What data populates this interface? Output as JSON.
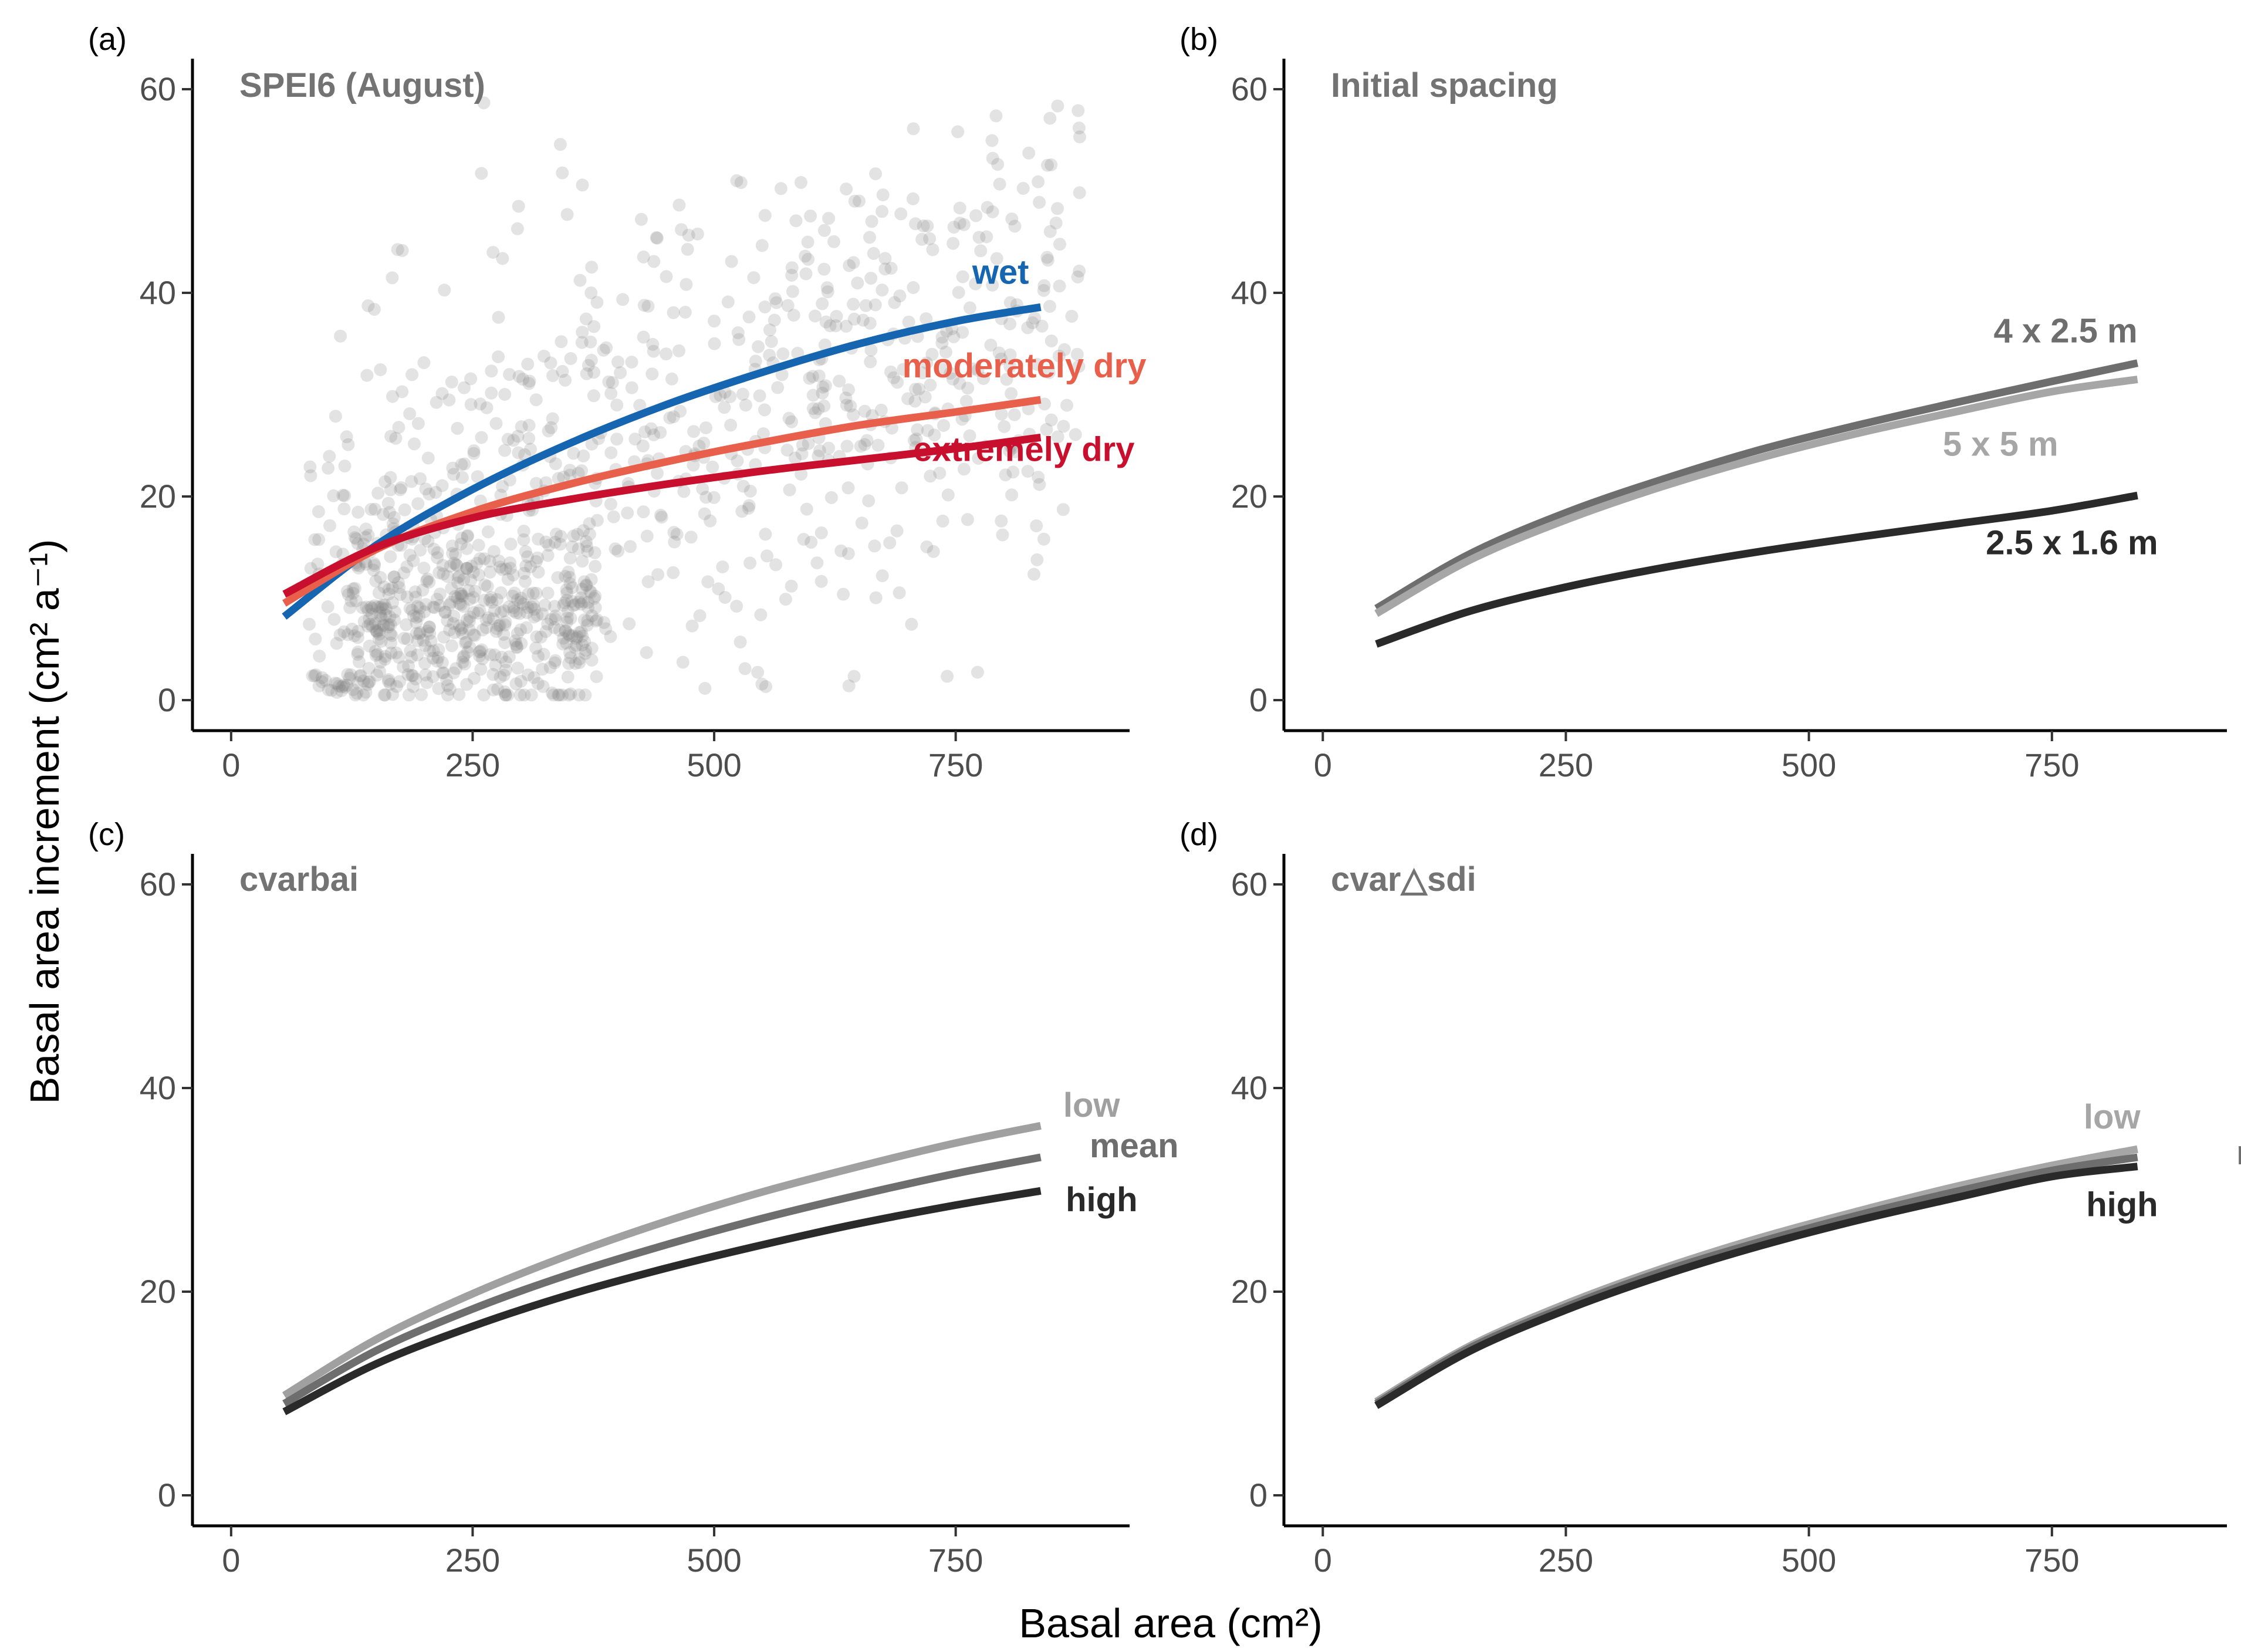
{
  "chart_data": {
    "type": "line",
    "xlabel": "Basal area (cm²)",
    "ylabel": "Basal area increment (cm² a⁻¹)",
    "xlim": [
      -40,
      930
    ],
    "ylim": [
      -3,
      63
    ],
    "xticks": [
      0,
      250,
      500,
      750
    ],
    "yticks": [
      0,
      20,
      40,
      60
    ],
    "panels": [
      {
        "tag": "(a)",
        "title": "SPEI6 (August)",
        "scatter": true,
        "series": [
          {
            "name": "wet",
            "color": "#1565b0",
            "x": [
              55,
              150,
              250,
              350,
              450,
              550,
              650,
              750,
              838
            ],
            "y": [
              8.2,
              15.2,
              20.7,
              25.2,
              29.0,
              32.2,
              35.0,
              37.2,
              38.6
            ]
          },
          {
            "name": "moderately dry",
            "color": "#e8604c",
            "x": [
              55,
              150,
              250,
              350,
              450,
              550,
              650,
              750,
              838
            ],
            "y": [
              9.5,
              14.8,
              18.5,
              21.2,
              23.4,
              25.3,
              27.0,
              28.3,
              29.5
            ]
          },
          {
            "name": "extremely dry",
            "color": "#c8102e",
            "x": [
              55,
              150,
              250,
              350,
              450,
              550,
              650,
              750,
              838
            ],
            "y": [
              10.4,
              15.0,
              17.9,
              19.7,
              21.2,
              22.5,
              23.6,
              24.7,
              25.8
            ]
          }
        ]
      },
      {
        "tag": "(b)",
        "title": "Initial spacing",
        "scatter": false,
        "series": [
          {
            "name": "4 x 2.5 m",
            "color": "#6e6e6e",
            "x": [
              55,
              150,
              250,
              350,
              450,
              550,
              650,
              750,
              838
            ],
            "y": [
              9.0,
              14.3,
              18.4,
              21.7,
              24.6,
              27.0,
              29.2,
              31.3,
              33.1
            ]
          },
          {
            "name": "5 x 5 m",
            "color": "#a6a6a6",
            "x": [
              55,
              150,
              250,
              350,
              450,
              550,
              650,
              750,
              838
            ],
            "y": [
              8.5,
              13.7,
              17.7,
              21.0,
              23.8,
              26.2,
              28.3,
              30.3,
              31.5
            ]
          },
          {
            "name": "2.5 x 1.6 m",
            "color": "#2a2a2a",
            "x": [
              55,
              150,
              250,
              350,
              450,
              550,
              650,
              750,
              838
            ],
            "y": [
              5.5,
              8.7,
              11.1,
              13.0,
              14.6,
              16.0,
              17.3,
              18.6,
              20.1
            ]
          }
        ]
      },
      {
        "tag": "(c)",
        "title": "cvarbai",
        "scatter": false,
        "series": [
          {
            "name": "low",
            "color": "#a0a0a0",
            "x": [
              55,
              150,
              250,
              350,
              450,
              550,
              650,
              750,
              838
            ],
            "y": [
              9.8,
              15.3,
              19.8,
              23.6,
              26.9,
              29.8,
              32.3,
              34.6,
              36.3
            ]
          },
          {
            "name": "mean",
            "color": "#6e6e6e",
            "x": [
              55,
              150,
              250,
              350,
              450,
              550,
              650,
              750,
              838
            ],
            "y": [
              9.0,
              14.2,
              18.3,
              21.7,
              24.6,
              27.2,
              29.5,
              31.6,
              33.2
            ]
          },
          {
            "name": "high",
            "color": "#2a2a2a",
            "x": [
              55,
              150,
              250,
              350,
              450,
              550,
              650,
              750,
              838
            ],
            "y": [
              8.2,
              12.9,
              16.6,
              19.7,
              22.3,
              24.6,
              26.7,
              28.5,
              29.9
            ]
          }
        ]
      },
      {
        "tag": "(d)",
        "title": "cvar△sdi",
        "scatter": false,
        "series": [
          {
            "name": "low",
            "color": "#a6a6a6",
            "x": [
              55,
              150,
              250,
              350,
              450,
              550,
              650,
              750,
              838
            ],
            "y": [
              9.2,
              14.6,
              18.8,
              22.3,
              25.3,
              27.9,
              30.3,
              32.4,
              34.0
            ]
          },
          {
            "name": "mean",
            "color": "#6e6e6e",
            "x": [
              55,
              150,
              250,
              350,
              450,
              550,
              650,
              750,
              838
            ],
            "y": [
              9.0,
              14.4,
              18.5,
              22.0,
              24.9,
              27.5,
              29.8,
              31.9,
              33.2
            ]
          },
          {
            "name": "high",
            "color": "#2a2a2a",
            "x": [
              55,
              150,
              250,
              350,
              450,
              550,
              650,
              750,
              838
            ],
            "y": [
              8.8,
              14.1,
              18.2,
              21.6,
              24.5,
              27.0,
              29.2,
              31.3,
              32.3
            ]
          }
        ]
      }
    ]
  }
}
